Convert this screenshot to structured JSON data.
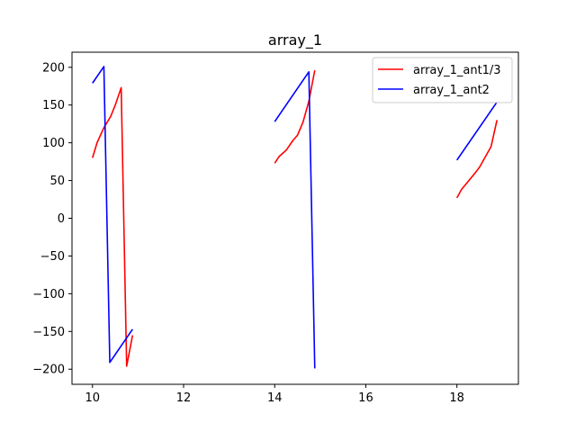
{
  "chart_data": {
    "type": "line",
    "title": "array_1",
    "xlabel": "",
    "ylabel": "",
    "xlim": [
      9.55,
      19.35
    ],
    "ylim": [
      -220,
      220
    ],
    "xticks": [
      10,
      12,
      14,
      16,
      18
    ],
    "yticks": [
      -200,
      -150,
      -100,
      -50,
      0,
      50,
      100,
      150,
      200
    ],
    "grid": false,
    "legend": "top-right",
    "series": [
      {
        "name": "array_1_ant1/3",
        "color": "#ff0000",
        "segments": [
          [
            [
              10.0,
              80
            ],
            [
              10.1,
              100
            ],
            [
              10.25,
              120
            ],
            [
              10.4,
              135
            ],
            [
              10.5,
              150
            ],
            [
              10.63,
              173
            ],
            [
              10.75,
              -196
            ],
            [
              10.88,
              -155
            ]
          ],
          [
            [
              14.0,
              73
            ],
            [
              14.1,
              82
            ],
            [
              14.25,
              90
            ],
            [
              14.4,
              103
            ],
            [
              14.5,
              110
            ],
            [
              14.62,
              127
            ],
            [
              14.75,
              155
            ],
            [
              14.88,
              196
            ]
          ],
          [
            [
              18.0,
              27
            ],
            [
              18.1,
              38
            ],
            [
              18.25,
              49
            ],
            [
              18.4,
              60
            ],
            [
              18.5,
              68
            ],
            [
              18.75,
              95
            ],
            [
              18.88,
              130
            ]
          ]
        ]
      },
      {
        "name": "array_1_ant2",
        "color": "#0000ff",
        "segments": [
          [
            [
              10.0,
              179
            ],
            [
              10.25,
              201
            ],
            [
              10.38,
              -191
            ],
            [
              10.88,
              -147
            ]
          ],
          [
            [
              14.0,
              128
            ],
            [
              14.75,
              194
            ],
            [
              14.88,
              -199
            ]
          ],
          [
            [
              18.0,
              77
            ],
            [
              18.88,
              154
            ]
          ]
        ]
      }
    ]
  }
}
